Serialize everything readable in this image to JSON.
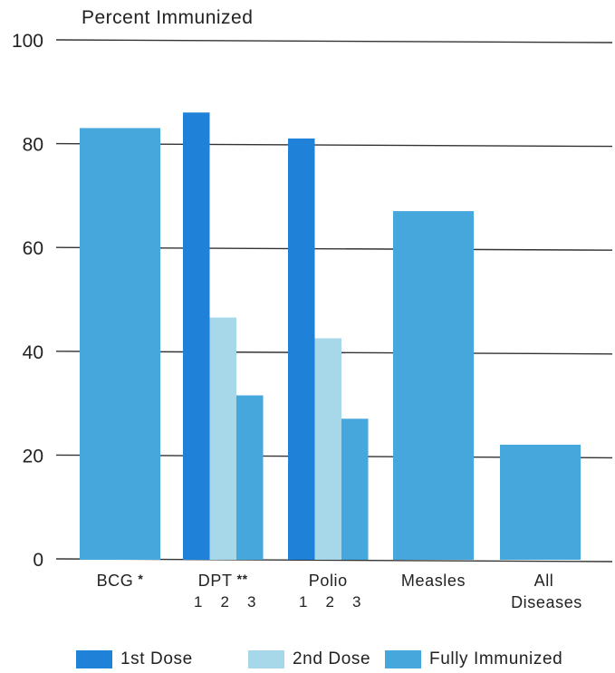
{
  "chart_data": {
    "type": "bar",
    "ylabel": "Percent Immunized",
    "ylim": [
      0,
      100
    ],
    "yticks": [
      "0",
      "20",
      "40",
      "60",
      "80",
      "100"
    ],
    "grid": true,
    "legend_position": "bottom",
    "colors": {
      "1st Dose": "#1f82d8",
      "2nd Dose": "#a6d8ea",
      "Fully Immunized": "#46a7dc"
    },
    "groups": [
      {
        "label": [
          "BCG",
          "*"
        ],
        "bars": [
          {
            "series": "Fully Immunized",
            "value": 83
          }
        ]
      },
      {
        "label": [
          "DPT",
          "**"
        ],
        "sublabels": [
          "1",
          "2",
          "3"
        ],
        "bars": [
          {
            "series": "1st Dose",
            "value": 86
          },
          {
            "series": "2nd Dose",
            "value": 46.5
          },
          {
            "series": "Fully Immunized",
            "value": 31.5
          }
        ]
      },
      {
        "label": [
          "Polio",
          ""
        ],
        "sublabels": [
          "1",
          "2",
          "3"
        ],
        "bars": [
          {
            "series": "1st Dose",
            "value": 81
          },
          {
            "series": "2nd Dose",
            "value": 42.5
          },
          {
            "series": "Fully Immunized",
            "value": 27
          }
        ]
      },
      {
        "label": [
          "Measles",
          ""
        ],
        "bars": [
          {
            "series": "Fully Immunized",
            "value": 67
          }
        ]
      },
      {
        "label": [
          "All",
          "Diseases"
        ],
        "bars": [
          {
            "series": "Fully Immunized",
            "value": 22
          }
        ]
      }
    ],
    "legend": [
      "1st Dose",
      "2nd Dose",
      "Fully Immunized"
    ]
  }
}
